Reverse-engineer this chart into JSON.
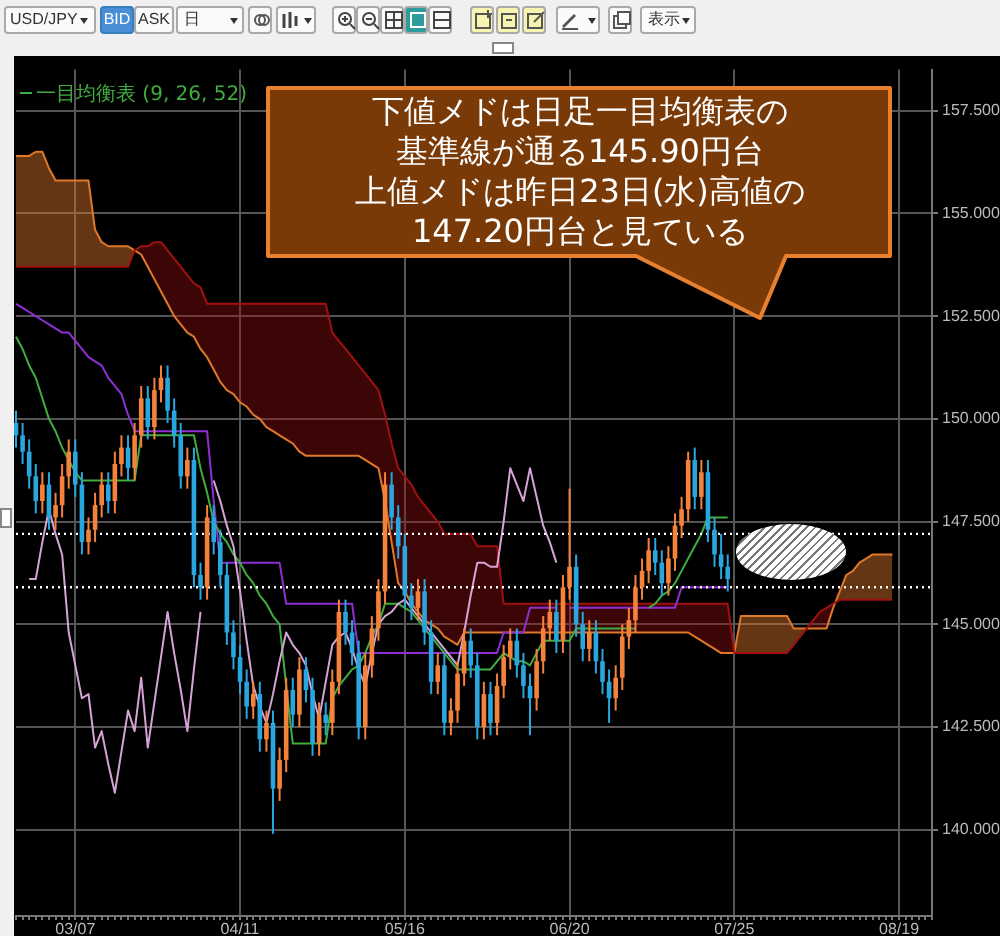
{
  "chart_data": {
    "type": "candlestick",
    "title": "USD/JPY",
    "categories": [
      null,
      null,
      null,
      null,
      null,
      null,
      null,
      null,
      null,
      "03/07",
      null,
      null,
      null,
      null,
      null,
      null,
      null,
      null,
      null,
      null,
      null,
      null,
      null,
      null,
      null,
      null,
      null,
      null,
      null,
      null,
      null,
      null,
      null,
      null,
      "04/11",
      null,
      null,
      null,
      null,
      null,
      null,
      null,
      null,
      null,
      null,
      null,
      null,
      null,
      null,
      null,
      null,
      null,
      null,
      null,
      null,
      null,
      null,
      null,
      null,
      "05/16",
      null,
      null,
      null,
      null,
      null,
      null,
      null,
      null,
      null,
      null,
      null,
      null,
      null,
      null,
      null,
      null,
      null,
      null,
      null,
      null,
      null,
      null,
      null,
      null,
      "06/20",
      null,
      null,
      null,
      null,
      null,
      null,
      null,
      null,
      null,
      null,
      null,
      null,
      null,
      null,
      null,
      null,
      null,
      null,
      null,
      null,
      null,
      null,
      null,
      null,
      "07/25",
      null,
      null,
      null,
      null,
      null,
      null,
      null,
      null,
      null,
      null,
      null,
      null,
      null,
      null,
      null,
      null,
      null,
      null,
      null,
      null,
      null,
      null,
      null,
      null,
      "08/19",
      null,
      null,
      null,
      null,
      null
    ],
    "ohlc": [
      [
        149.9,
        150.2,
        149.3,
        149.6
      ],
      [
        149.6,
        149.9,
        148.9,
        149.2
      ],
      [
        149.2,
        149.5,
        148.3,
        148.6
      ],
      [
        148.6,
        148.9,
        147.7,
        148.0
      ],
      [
        148.0,
        148.7,
        147.7,
        148.4
      ],
      [
        148.4,
        148.7,
        147.3,
        147.6
      ],
      [
        147.6,
        148.2,
        147.3,
        147.9
      ],
      [
        147.9,
        148.9,
        147.6,
        148.6
      ],
      [
        148.6,
        149.5,
        148.3,
        149.2
      ],
      [
        149.2,
        149.5,
        148.1,
        148.4
      ],
      [
        148.4,
        148.7,
        146.7,
        147.0
      ],
      [
        147.0,
        147.6,
        146.7,
        147.3
      ],
      [
        147.3,
        148.2,
        147.0,
        147.9
      ],
      [
        147.9,
        148.7,
        147.6,
        148.4
      ],
      [
        148.4,
        148.7,
        147.7,
        148.0
      ],
      [
        148.0,
        149.2,
        147.7,
        148.9
      ],
      [
        148.9,
        149.6,
        148.6,
        149.3
      ],
      [
        149.3,
        149.6,
        148.5,
        148.8
      ],
      [
        148.8,
        149.9,
        148.5,
        149.6
      ],
      [
        149.6,
        150.8,
        149.3,
        150.5
      ],
      [
        150.5,
        150.8,
        149.5,
        149.8
      ],
      [
        149.8,
        151.0,
        149.5,
        150.7
      ],
      [
        150.7,
        151.3,
        150.4,
        151.0
      ],
      [
        151.0,
        151.3,
        149.9,
        150.2
      ],
      [
        150.2,
        150.5,
        149.3,
        149.6
      ],
      [
        149.6,
        149.9,
        148.3,
        148.6
      ],
      [
        148.6,
        149.3,
        148.3,
        149.0
      ],
      [
        149.0,
        149.3,
        145.9,
        146.2
      ],
      [
        146.2,
        146.5,
        145.6,
        145.9
      ],
      [
        145.9,
        147.9,
        145.6,
        147.6
      ],
      [
        147.6,
        147.9,
        146.7,
        147.0
      ],
      [
        147.0,
        147.3,
        145.9,
        146.2
      ],
      [
        146.2,
        146.5,
        144.5,
        144.8
      ],
      [
        144.8,
        145.1,
        143.9,
        144.2
      ],
      [
        144.2,
        144.5,
        143.3,
        143.6
      ],
      [
        143.6,
        143.9,
        142.7,
        143.0
      ],
      [
        143.0,
        143.6,
        142.7,
        143.3
      ],
      [
        143.3,
        143.6,
        141.9,
        142.2
      ],
      [
        142.2,
        142.9,
        141.9,
        142.6
      ],
      [
        142.6,
        142.9,
        139.9,
        141.0
      ],
      [
        141.0,
        142.0,
        140.7,
        141.7
      ],
      [
        141.7,
        143.7,
        141.4,
        143.4
      ],
      [
        143.4,
        143.7,
        142.5,
        142.8
      ],
      [
        142.8,
        144.2,
        142.5,
        143.9
      ],
      [
        143.9,
        144.2,
        143.1,
        143.4
      ],
      [
        143.4,
        143.7,
        141.8,
        142.1
      ],
      [
        142.1,
        143.1,
        141.8,
        142.8
      ],
      [
        142.8,
        143.1,
        142.3,
        142.6
      ],
      [
        142.6,
        143.9,
        142.3,
        143.6
      ],
      [
        143.6,
        145.6,
        143.3,
        145.3
      ],
      [
        145.3,
        145.6,
        144.5,
        144.8
      ],
      [
        144.8,
        145.1,
        144.0,
        144.3
      ],
      [
        144.3,
        144.6,
        142.2,
        142.5
      ],
      [
        142.5,
        144.3,
        142.2,
        144.0
      ],
      [
        144.0,
        145.2,
        143.7,
        144.9
      ],
      [
        144.9,
        146.1,
        144.6,
        145.8
      ],
      [
        145.8,
        148.7,
        145.5,
        148.4
      ],
      [
        148.4,
        148.7,
        147.3,
        147.6
      ],
      [
        147.6,
        147.9,
        146.6,
        146.9
      ],
      [
        146.9,
        147.2,
        145.4,
        145.7
      ],
      [
        145.7,
        146.0,
        145.1,
        145.4
      ],
      [
        145.4,
        146.1,
        145.1,
        145.8
      ],
      [
        145.8,
        146.1,
        144.5,
        144.8
      ],
      [
        144.8,
        145.1,
        143.3,
        143.6
      ],
      [
        143.6,
        144.3,
        143.3,
        144.0
      ],
      [
        144.0,
        144.3,
        142.3,
        142.6
      ],
      [
        142.6,
        143.2,
        142.3,
        142.9
      ],
      [
        142.9,
        144.1,
        142.6,
        143.8
      ],
      [
        143.8,
        144.9,
        143.5,
        144.6
      ],
      [
        144.6,
        144.9,
        143.7,
        144.0
      ],
      [
        144.0,
        144.3,
        142.2,
        142.5
      ],
      [
        142.5,
        143.6,
        142.2,
        143.3
      ],
      [
        143.3,
        143.6,
        142.3,
        142.6
      ],
      [
        142.6,
        143.8,
        142.3,
        143.5
      ],
      [
        143.5,
        144.5,
        143.2,
        144.2
      ],
      [
        144.2,
        144.9,
        143.9,
        144.6
      ],
      [
        144.6,
        144.9,
        143.7,
        144.0
      ],
      [
        144.0,
        144.3,
        143.2,
        143.5
      ],
      [
        143.5,
        143.8,
        142.3,
        143.2
      ],
      [
        143.2,
        144.4,
        142.9,
        144.1
      ],
      [
        144.1,
        145.2,
        143.8,
        144.9
      ],
      [
        144.9,
        145.6,
        144.6,
        145.3
      ],
      [
        145.3,
        145.6,
        144.3,
        144.6
      ],
      [
        144.6,
        146.2,
        144.3,
        145.9
      ],
      [
        145.9,
        148.3,
        145.6,
        146.4
      ],
      [
        146.4,
        146.7,
        144.7,
        145.0
      ],
      [
        145.0,
        145.3,
        144.1,
        144.4
      ],
      [
        144.4,
        145.1,
        144.1,
        144.8
      ],
      [
        144.8,
        145.1,
        143.8,
        144.1
      ],
      [
        144.1,
        144.4,
        143.3,
        143.6
      ],
      [
        143.6,
        143.9,
        142.6,
        143.2
      ],
      [
        143.2,
        144.0,
        142.9,
        143.7
      ],
      [
        143.7,
        145.0,
        143.4,
        144.7
      ],
      [
        144.7,
        145.4,
        144.4,
        145.1
      ],
      [
        145.1,
        146.2,
        144.8,
        145.9
      ],
      [
        145.9,
        146.6,
        145.6,
        146.3
      ],
      [
        146.3,
        147.1,
        146.0,
        146.8
      ],
      [
        146.8,
        147.1,
        146.2,
        146.5
      ],
      [
        146.5,
        146.8,
        145.7,
        146.0
      ],
      [
        146.0,
        146.9,
        145.7,
        146.6
      ],
      [
        146.6,
        147.7,
        146.3,
        147.4
      ],
      [
        147.4,
        148.1,
        147.1,
        147.8
      ],
      [
        147.8,
        149.2,
        147.5,
        149.0
      ],
      [
        149.0,
        149.3,
        147.8,
        148.1
      ],
      [
        148.1,
        149.0,
        147.8,
        148.7
      ],
      [
        148.7,
        149.0,
        147.0,
        147.3
      ],
      [
        147.3,
        147.6,
        146.4,
        146.7
      ],
      [
        146.7,
        147.2,
        146.1,
        146.4
      ],
      [
        146.4,
        146.7,
        145.8,
        146.1
      ],
      null,
      null,
      null,
      null,
      null,
      null,
      null,
      null,
      null,
      null,
      null,
      null,
      null,
      null,
      null,
      null,
      null,
      null,
      null,
      null,
      null,
      null,
      null,
      null,
      null,
      null,
      null,
      null,
      null,
      null,
      null
    ],
    "colors": [
      "#2aa6df",
      "#2aa6df",
      "#2aa6df",
      "#2aa6df",
      "#f5823a",
      "#2aa6df",
      "#f5823a",
      "#f5823a",
      "#f5823a",
      "#2aa6df",
      "#2aa6df",
      "#f5823a",
      "#f5823a",
      "#f5823a",
      "#2aa6df",
      "#f5823a",
      "#f5823a",
      "#2aa6df",
      "#f5823a",
      "#f5823a",
      "#2aa6df",
      "#f5823a",
      "#f5823a",
      "#2aa6df",
      "#2aa6df",
      "#2aa6df",
      "#f5823a",
      "#2aa6df",
      "#2aa6df",
      "#f5823a",
      "#2aa6df",
      "#2aa6df",
      "#2aa6df",
      "#2aa6df",
      "#2aa6df",
      "#2aa6df",
      "#f5823a",
      "#2aa6df",
      "#f5823a",
      "#2aa6df",
      "#f5823a",
      "#f5823a",
      "#2aa6df",
      "#f5823a",
      "#2aa6df",
      "#2aa6df",
      "#f5823a",
      "#2aa6df",
      "#f5823a",
      "#f5823a",
      "#2aa6df",
      "#2aa6df",
      "#2aa6df",
      "#f5823a",
      "#f5823a",
      "#f5823a",
      "#f5823a",
      "#2aa6df",
      "#2aa6df",
      "#2aa6df",
      "#2aa6df",
      "#f5823a",
      "#2aa6df",
      "#2aa6df",
      "#f5823a",
      "#2aa6df",
      "#f5823a",
      "#f5823a",
      "#f5823a",
      "#2aa6df",
      "#2aa6df",
      "#f5823a",
      "#2aa6df",
      "#f5823a",
      "#f5823a",
      "#f5823a",
      "#2aa6df",
      "#2aa6df",
      "#2aa6df",
      "#f5823a",
      "#f5823a",
      "#f5823a",
      "#2aa6df",
      "#f5823a",
      "#f5823a",
      "#2aa6df",
      "#2aa6df",
      "#f5823a",
      "#2aa6df",
      "#2aa6df",
      "#2aa6df",
      "#f5823a",
      "#f5823a",
      "#f5823a",
      "#f5823a",
      "#f5823a",
      "#f5823a",
      "#2aa6df",
      "#2aa6df",
      "#f5823a",
      "#f5823a",
      "#f5823a",
      "#f5823a",
      "#2aa6df",
      "#f5823a",
      "#2aa6df",
      "#2aa6df",
      "#2aa6df",
      "#2aa6df",
      null,
      null,
      null,
      null,
      null,
      null,
      null,
      null,
      null,
      null,
      null,
      null,
      null,
      null,
      null,
      null,
      null,
      null,
      null,
      null,
      null,
      null,
      null,
      null,
      null,
      null,
      null,
      null,
      null,
      null,
      null
    ],
    "series": [
      {
        "type": "line",
        "color": "#e0782a",
        "values": [
          156.4,
          156.4,
          156.4,
          156.5,
          156.5,
          156.1,
          155.8,
          155.8,
          155.8,
          155.8,
          155.8,
          155.8,
          154.6,
          154.3,
          154.2,
          154.2,
          154.2,
          154.2,
          154.1,
          154.0,
          153.7,
          153.4,
          153.1,
          152.8,
          152.5,
          152.3,
          152.1,
          152.0,
          151.7,
          151.5,
          151.2,
          150.9,
          150.7,
          150.6,
          150.4,
          150.3,
          150.1,
          150.0,
          149.8,
          149.7,
          149.6,
          149.5,
          149.4,
          149.2,
          149.1,
          149.1,
          149.1,
          149.1,
          149.1,
          149.1,
          149.1,
          149.1,
          149.1,
          149.0,
          148.9,
          148.8,
          148.0,
          147.0,
          146.0,
          145.8,
          145.5,
          145.3,
          145.1,
          145.0,
          144.9,
          144.7,
          144.6,
          144.5,
          144.8,
          144.8,
          144.8,
          144.8,
          144.8,
          144.8,
          144.8,
          144.8,
          144.8,
          144.8,
          144.8,
          144.8,
          144.8,
          144.8,
          144.8,
          144.8,
          144.8,
          144.8,
          144.8,
          144.8,
          144.8,
          144.8,
          144.8,
          144.8,
          144.8,
          144.8,
          144.8,
          144.8,
          144.8,
          144.8,
          144.8,
          144.8,
          144.8,
          144.8,
          144.8,
          144.7,
          144.6,
          144.5,
          144.4,
          144.3,
          144.3,
          144.3,
          145.2,
          145.2,
          145.2,
          145.2,
          145.2,
          145.2,
          145.2,
          145.2,
          144.9,
          144.9,
          144.9,
          144.9,
          144.9,
          144.9,
          145.4,
          145.8,
          146.2,
          146.3,
          146.5,
          146.6,
          146.7,
          146.7,
          146.7,
          146.7,
          null,
          null,
          null,
          null,
          null,
          null
        ]
      },
      {
        "type": "line",
        "color": "#a01010",
        "lower": [
          156.4,
          156.4,
          156.4,
          156.5,
          156.5,
          156.1,
          155.8,
          155.8,
          155.8,
          155.8,
          155.8,
          155.8,
          154.6,
          154.3,
          154.2,
          154.2,
          154.2,
          154.2,
          154.1,
          154.0,
          153.7,
          153.4,
          153.1,
          152.8,
          152.5,
          152.3,
          152.1,
          152.0,
          151.7,
          151.5,
          151.2,
          150.9,
          150.7,
          150.6,
          150.4,
          150.3,
          150.1,
          150.0,
          149.8,
          149.7,
          149.6,
          149.5,
          149.4,
          149.2,
          149.1,
          149.1,
          149.1,
          149.1,
          149.1,
          149.1,
          149.1,
          149.1,
          149.1,
          149.0,
          148.9,
          148.8,
          148.0,
          147.0,
          146.0,
          145.8,
          145.5,
          145.3,
          145.1,
          145.0,
          144.9,
          144.7,
          144.6,
          144.5,
          144.8,
          144.8,
          144.8,
          144.8,
          144.8,
          144.8,
          144.8,
          144.8,
          144.8,
          144.8,
          144.8,
          144.8,
          144.8,
          144.8,
          144.8,
          144.8,
          144.8,
          144.8,
          144.8,
          144.8,
          144.8,
          144.8,
          144.8,
          144.8,
          144.8,
          144.8,
          144.8,
          144.8,
          144.8,
          144.8,
          144.8,
          144.8,
          144.8,
          144.8,
          144.8,
          144.7,
          144.6,
          144.5,
          144.4,
          144.3,
          144.3,
          144.3,
          145.2,
          145.2,
          145.2,
          145.2,
          145.2,
          145.2,
          145.2,
          145.2,
          144.9,
          144.9,
          144.9,
          144.9,
          144.9,
          144.9,
          145.4,
          145.8,
          146.2,
          146.3,
          146.5,
          146.6,
          146.7,
          146.7,
          146.7,
          146.7,
          null,
          null,
          null,
          null,
          null,
          null
        ],
        "upper": [
          153.7,
          153.7,
          153.7,
          153.7,
          153.7,
          153.7,
          153.7,
          153.7,
          153.7,
          153.7,
          153.7,
          153.7,
          153.7,
          153.7,
          153.7,
          153.7,
          153.7,
          153.7,
          154.1,
          154.2,
          154.2,
          154.3,
          154.3,
          154.1,
          153.9,
          153.7,
          153.5,
          153.3,
          153.2,
          152.8,
          152.8,
          152.8,
          152.8,
          152.8,
          152.8,
          152.8,
          152.8,
          152.8,
          152.8,
          152.8,
          152.8,
          152.8,
          152.8,
          152.8,
          152.8,
          152.8,
          152.8,
          152.8,
          152.1,
          151.9,
          151.7,
          151.5,
          151.3,
          151.1,
          150.9,
          150.7,
          150.1,
          149.4,
          148.8,
          148.6,
          148.4,
          148.1,
          147.9,
          147.7,
          147.5,
          147.2,
          147.2,
          147.2,
          147.2,
          147.2,
          146.9,
          146.9,
          146.9,
          146.9,
          145.5,
          145.5,
          145.5,
          145.5,
          145.5,
          145.5,
          145.5,
          145.5,
          145.5,
          145.5,
          145.5,
          145.5,
          145.5,
          145.5,
          145.5,
          145.5,
          145.5,
          145.5,
          145.5,
          145.5,
          145.5,
          145.5,
          145.5,
          145.5,
          145.5,
          145.5,
          145.5,
          145.5,
          145.5,
          145.5,
          145.5,
          145.5,
          145.5,
          145.5,
          145.5,
          144.3,
          144.3,
          144.3,
          144.3,
          144.3,
          144.3,
          144.3,
          144.3,
          144.3,
          144.5,
          144.7,
          144.9,
          145.1,
          145.3,
          145.4,
          145.5,
          145.6,
          145.6,
          145.6,
          145.6,
          145.6,
          145.6,
          145.6,
          145.6,
          145.6,
          null,
          null,
          null,
          null,
          null,
          null
        ],
        "values": [
          153.7,
          153.7,
          153.7,
          153.7,
          153.7,
          153.7,
          153.7,
          153.7,
          153.7,
          153.7,
          153.7,
          153.7,
          153.7,
          153.7,
          153.7,
          153.7,
          153.7,
          153.7,
          154.1,
          154.2,
          154.2,
          154.3,
          154.3,
          154.1,
          153.9,
          153.7,
          153.5,
          153.3,
          153.2,
          152.8,
          152.8,
          152.8,
          152.8,
          152.8,
          152.8,
          152.8,
          152.8,
          152.8,
          152.8,
          152.8,
          152.8,
          152.8,
          152.8,
          152.8,
          152.8,
          152.8,
          152.8,
          152.8,
          152.1,
          151.9,
          151.7,
          151.5,
          151.3,
          151.1,
          150.9,
          150.7,
          150.1,
          149.4,
          148.8,
          148.6,
          148.4,
          148.1,
          147.9,
          147.7,
          147.5,
          147.2,
          147.2,
          147.2,
          147.2,
          147.2,
          146.9,
          146.9,
          146.9,
          146.9,
          145.5,
          145.5,
          145.5,
          145.5,
          145.5,
          145.5,
          145.5,
          145.5,
          145.5,
          145.5,
          145.5,
          145.5,
          145.5,
          145.5,
          145.5,
          145.5,
          145.5,
          145.5,
          145.5,
          145.5,
          145.5,
          145.5,
          145.5,
          145.5,
          145.5,
          145.5,
          145.5,
          145.5,
          145.5,
          145.5,
          145.5,
          145.5,
          145.5,
          145.5,
          145.5,
          144.3,
          144.3,
          144.3,
          144.3,
          144.3,
          144.3,
          144.3,
          144.3,
          144.3,
          144.5,
          144.7,
          144.9,
          145.1,
          145.3,
          145.4,
          145.5,
          145.6,
          145.6,
          145.6,
          145.6,
          145.6,
          145.6,
          145.6,
          145.6,
          145.6,
          null,
          null,
          null,
          null,
          null,
          null
        ]
      },
      {
        "type": "line",
        "color": "#8e2fd6",
        "values": [
          152.8,
          152.7,
          152.6,
          152.5,
          152.4,
          152.3,
          152.2,
          152.1,
          152.1,
          151.9,
          151.7,
          151.5,
          151.4,
          151.3,
          151.0,
          150.8,
          150.6,
          150.1,
          149.7,
          149.7,
          149.7,
          149.7,
          149.7,
          149.7,
          149.7,
          149.7,
          149.7,
          149.7,
          149.7,
          149.7,
          148.0,
          146.5,
          146.5,
          146.5,
          146.5,
          146.5,
          146.5,
          146.5,
          146.5,
          146.5,
          146.5,
          145.5,
          145.5,
          145.5,
          145.5,
          145.5,
          145.5,
          145.5,
          145.5,
          145.5,
          145.5,
          145.5,
          144.3,
          144.3,
          144.3,
          144.3,
          144.3,
          144.3,
          144.3,
          144.3,
          144.3,
          144.3,
          144.3,
          144.3,
          144.3,
          144.3,
          144.3,
          144.3,
          144.3,
          144.3,
          144.3,
          144.3,
          144.3,
          144.3,
          144.8,
          144.8,
          144.8,
          144.8,
          145.4,
          145.4,
          145.4,
          145.4,
          145.4,
          null,
          145.4,
          145.4,
          145.4,
          145.4,
          145.4,
          145.4,
          145.4,
          145.4,
          145.4,
          145.4,
          145.4,
          145.4,
          145.4,
          145.4,
          145.4,
          145.4,
          145.4,
          145.9,
          145.9,
          145.9,
          145.9,
          145.9,
          145.9,
          145.9,
          145.9,
          null,
          null,
          null,
          null,
          null,
          null,
          null,
          null,
          null,
          null,
          null,
          null,
          null,
          null,
          null,
          null,
          null,
          null,
          null,
          null,
          null,
          null,
          null,
          null,
          null,
          null,
          null,
          null,
          null,
          null,
          null
        ]
      },
      {
        "type": "line",
        "color": "#3fae3f",
        "values": [
          152.0,
          151.7,
          151.3,
          151.0,
          150.5,
          150.0,
          149.7,
          149.3,
          149.0,
          148.7,
          148.5,
          148.5,
          148.5,
          148.5,
          148.5,
          148.5,
          148.5,
          148.5,
          148.5,
          149.6,
          149.6,
          149.6,
          149.6,
          149.6,
          149.6,
          149.6,
          149.6,
          149.6,
          148.8,
          148.2,
          147.5,
          147.2,
          147.0,
          146.7,
          146.5,
          146.2,
          146.0,
          145.7,
          145.5,
          145.2,
          145.0,
          143.5,
          142.1,
          142.1,
          142.1,
          142.1,
          142.1,
          142.1,
          143.2,
          143.5,
          143.7,
          143.9,
          144.0,
          144.3,
          144.7,
          145.0,
          145.5,
          145.5,
          145.5,
          145.4,
          145.3,
          145.1,
          144.9,
          144.7,
          144.5,
          144.3,
          144.1,
          143.9,
          143.9,
          143.9,
          143.9,
          143.9,
          143.9,
          144.1,
          144.3,
          144.2,
          144.1,
          144.1,
          144.0,
          144.3,
          144.6,
          144.6,
          144.6,
          144.6,
          144.6,
          144.9,
          144.9,
          144.9,
          144.9,
          144.9,
          144.9,
          144.9,
          144.9,
          144.9,
          144.9,
          null,
          145.4,
          145.5,
          145.7,
          145.8,
          146.0,
          146.3,
          146.6,
          146.9,
          147.2,
          147.6,
          147.6,
          147.6,
          147.6,
          null,
          null,
          null,
          null,
          null,
          null,
          null,
          null,
          null,
          null,
          null,
          null,
          null,
          null,
          null,
          null,
          null,
          null,
          null,
          null,
          null,
          null,
          null,
          null,
          null,
          null,
          null,
          null,
          null,
          null,
          null
        ]
      },
      {
        "type": "line",
        "color": "#d6a3d6",
        "values": [
          null,
          null,
          146.1,
          146.1,
          147.0,
          147.8,
          147.2,
          146.7,
          144.8,
          144.0,
          143.2,
          143.3,
          142.0,
          142.4,
          141.6,
          140.9,
          141.9,
          142.9,
          142.4,
          143.7,
          142.0,
          143.1,
          144.2,
          145.3,
          144.3,
          143.4,
          142.4,
          143.9,
          145.3,
          null,
          148.5,
          148.0,
          147.4,
          146.9,
          145.8,
          144.6,
          143.5,
          143.0,
          142.6,
          143.3,
          144.1,
          144.8,
          144.5,
          144.3,
          144.0,
          143.3,
          142.7,
          143.6,
          144.5,
          144.7,
          144.8,
          144.4,
          143.9,
          143.5,
          144.3,
          145.0,
          145.2,
          145.3,
          145.5,
          145.6,
          145.4,
          145.2,
          145.0,
          144.8,
          144.6,
          144.4,
          144.2,
          144.0,
          144.8,
          145.7,
          146.5,
          146.5,
          146.4,
          146.4,
          147.5,
          148.8,
          148.4,
          148.0,
          148.8,
          148.1,
          147.4,
          147.0,
          146.5,
          null,
          null,
          null,
          null,
          null,
          null,
          null,
          null,
          null,
          null,
          null,
          null,
          null,
          null,
          null,
          null,
          null,
          null,
          null,
          null,
          null,
          null,
          null,
          null,
          null,
          null,
          null,
          null,
          null,
          null,
          null,
          null,
          null,
          null,
          null,
          null,
          null,
          null,
          null,
          null,
          null,
          null,
          null,
          null,
          null,
          null,
          null,
          null,
          null,
          null,
          null,
          null,
          null,
          null,
          null,
          null,
          null
        ]
      }
    ],
    "ylim": [
      137.9,
      158.5
    ],
    "yticks": [
      {
        "value": 140,
        "label": "140.000"
      },
      {
        "value": 142.5,
        "label": "142.500"
      },
      {
        "value": 145,
        "label": "145.000"
      },
      {
        "value": 147.5,
        "label": "147.500"
      },
      {
        "value": 150,
        "label": "150.000"
      },
      {
        "value": 152.5,
        "label": "152.500"
      },
      {
        "value": 155,
        "label": "155.000"
      },
      {
        "value": 157.5,
        "label": "157.500"
      }
    ],
    "grid": true,
    "ref_lines": [
      {
        "axis": "y",
        "value": 147.2,
        "color": "#ffffff",
        "line_style": "dotted"
      },
      {
        "axis": "y",
        "value": 145.9,
        "color": "#ffffff",
        "line_style": "dotted"
      }
    ],
    "annotations": [
      "下値メドは日足一目均衡表の",
      "基準線が通る145.90円台",
      "上値メドは昨日23日(水)高値の",
      "147.20円台と見ている",
      "一目均衡表 (9, 26, 52)",
      "BID",
      "ASK",
      "日",
      "表示"
    ]
  }
}
